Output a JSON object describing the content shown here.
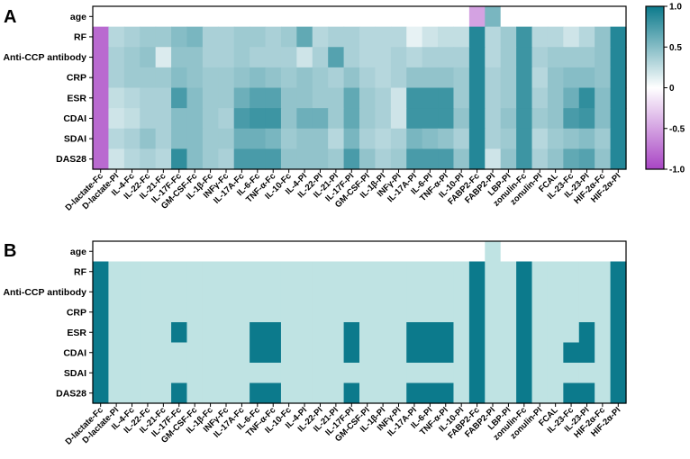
{
  "chart_data": [
    {
      "type": "heatmap",
      "panel": "A",
      "rows": [
        "age",
        "RF",
        "Anti-CCP antibody",
        "CRP",
        "ESR",
        "CDAI",
        "SDAI",
        "DAS28"
      ],
      "columns": [
        "D-lactate-Fc",
        "D-lactate-PI",
        "IL-4-Fc",
        "IL-22-Fc",
        "IL-21-Fc",
        "IL-17F-Fc",
        "GM-CSF-Fc",
        "IL-1β-Fc",
        "INFγ-Fc",
        "IL-17A-Fc",
        "IL-6-Fc",
        "TNF-α-Fc",
        "IL-10-Fc",
        "IL-4-PI",
        "IL-22-PI",
        "IL-21-PI",
        "IL-17F-PI",
        "GM-CSF-PI",
        "IL-1β-PI",
        "INFγ-PI",
        "IL-17A-PI",
        "IL-6-PI",
        "TNF-α-PI",
        "IL-10-PI",
        "FABP2-Fc",
        "FABP2-PI",
        "LBP-PI",
        "zonulin-Fc",
        "zonulin-PI",
        "FCAL",
        "IL-23-Fc",
        "IL-23-PI",
        "HIF-2α-Fc",
        "HIF-2α-PI"
      ],
      "values": [
        [
          0,
          0,
          0,
          0,
          0,
          0,
          0,
          0,
          0,
          0,
          0,
          0,
          0,
          0,
          0,
          0,
          0,
          0,
          0,
          0,
          0,
          0,
          0,
          0,
          -0.5,
          0.55,
          0,
          0,
          0,
          0,
          0,
          0,
          0,
          0
        ],
        [
          -0.8,
          0.3,
          0.35,
          0.4,
          0.4,
          0.5,
          0.55,
          0.35,
          0.35,
          0.4,
          0.4,
          0.35,
          0.4,
          0.65,
          0.3,
          0.35,
          0.35,
          0.3,
          0.3,
          0.3,
          0.1,
          0.2,
          0.25,
          0.25,
          0.9,
          0.3,
          0.4,
          0.8,
          0.3,
          0.3,
          0.2,
          0.3,
          0.45,
          0.9
        ],
        [
          -0.8,
          0.35,
          0.4,
          0.45,
          0.15,
          0.45,
          0.45,
          0.35,
          0.35,
          0.4,
          0.35,
          0.35,
          0.35,
          0.2,
          0.35,
          0.7,
          0.35,
          0.3,
          0.3,
          0.35,
          0.3,
          0.35,
          0.35,
          0.35,
          0.9,
          0.3,
          0.4,
          0.8,
          0.35,
          0.4,
          0.4,
          0.4,
          0.45,
          0.9
        ],
        [
          -0.8,
          0.35,
          0.4,
          0.4,
          0.4,
          0.5,
          0.45,
          0.4,
          0.4,
          0.45,
          0.5,
          0.45,
          0.4,
          0.45,
          0.4,
          0.35,
          0.45,
          0.35,
          0.3,
          0.35,
          0.45,
          0.45,
          0.45,
          0.4,
          0.9,
          0.35,
          0.4,
          0.8,
          0.3,
          0.45,
          0.5,
          0.5,
          0.45,
          0.9
        ],
        [
          -0.8,
          0.25,
          0.3,
          0.35,
          0.35,
          0.75,
          0.5,
          0.4,
          0.4,
          0.6,
          0.7,
          0.7,
          0.45,
          0.45,
          0.4,
          0.4,
          0.65,
          0.4,
          0.35,
          0.2,
          0.8,
          0.8,
          0.8,
          0.4,
          0.9,
          0.35,
          0.4,
          0.8,
          0.35,
          0.45,
          0.6,
          0.85,
          0.5,
          0.9
        ],
        [
          -0.8,
          0.2,
          0.25,
          0.35,
          0.35,
          0.5,
          0.5,
          0.4,
          0.35,
          0.75,
          0.8,
          0.8,
          0.45,
          0.6,
          0.6,
          0.4,
          0.65,
          0.4,
          0.35,
          0.2,
          0.8,
          0.8,
          0.8,
          0.45,
          0.9,
          0.35,
          0.45,
          0.8,
          0.4,
          0.45,
          0.75,
          0.8,
          0.5,
          0.9
        ],
        [
          -0.8,
          0.3,
          0.35,
          0.45,
          0.35,
          0.5,
          0.5,
          0.4,
          0.4,
          0.6,
          0.6,
          0.55,
          0.4,
          0.45,
          0.45,
          0.3,
          0.55,
          0.35,
          0.3,
          0.35,
          0.55,
          0.5,
          0.45,
          0.35,
          0.9,
          0.35,
          0.4,
          0.8,
          0.3,
          0.4,
          0.45,
          0.5,
          0.4,
          0.9
        ],
        [
          -0.8,
          0.2,
          0.3,
          0.35,
          0.3,
          0.85,
          0.5,
          0.4,
          0.35,
          0.75,
          0.75,
          0.75,
          0.45,
          0.45,
          0.45,
          0.4,
          0.75,
          0.45,
          0.35,
          0.4,
          0.75,
          0.75,
          0.75,
          0.45,
          0.9,
          0.2,
          0.45,
          0.8,
          0.35,
          0.45,
          0.65,
          0.7,
          0.45,
          0.9
        ]
      ],
      "colorbar": {
        "ticks": [
          "1.0",
          "0.5",
          "0",
          "-0.5",
          "-1.0"
        ],
        "range": [
          -1,
          1
        ]
      },
      "colors": {
        "pos": "#0c7a8c",
        "neg": "#a845c4",
        "mid": "#ffffff"
      }
    },
    {
      "type": "heatmap",
      "panel": "B",
      "rows": [
        "age",
        "RF",
        "Anti-CCP antibody",
        "CRP",
        "ESR",
        "CDAI",
        "SDAI",
        "DAS28"
      ],
      "columns": [
        "D-lactate-Fc",
        "D-lactate-PI",
        "IL-4-Fc",
        "IL-22-Fc",
        "IL-21-Fc",
        "IL-17F-Fc",
        "GM-CSF-Fc",
        "IL-1β-Fc",
        "INFγ-Fc",
        "IL-17A-Fc",
        "IL-6-Fc",
        "TNF-α-Fc",
        "IL-10-Fc",
        "IL-4-PI",
        "IL-22-PI",
        "IL-21-PI",
        "IL-17F-PI",
        "GM-CSF-PI",
        "IL-1β-PI",
        "INFγ-PI",
        "IL-17A-PI",
        "IL-6-PI",
        "TNF-α-PI",
        "IL-10-PI",
        "FABP2-Fc",
        "FABP2-PI",
        "LBP-PI",
        "zonulin-Fc",
        "zonulin-PI",
        "FCAL",
        "IL-23-Fc",
        "IL-23-PI",
        "HIF-2α-Fc",
        "HIF-2α-PI"
      ],
      "values": [
        [
          0,
          0,
          0,
          0,
          0,
          0,
          0,
          0,
          0,
          0,
          0,
          0,
          0,
          0,
          0,
          0,
          0,
          0,
          0,
          0,
          0,
          0,
          0,
          0,
          0,
          1,
          0,
          0,
          0,
          0,
          0,
          0,
          0,
          0
        ],
        [
          2,
          1,
          1,
          1,
          1,
          1,
          1,
          1,
          1,
          1,
          1,
          1,
          1,
          1,
          1,
          1,
          1,
          1,
          1,
          1,
          1,
          1,
          1,
          1,
          2,
          1,
          1,
          2,
          1,
          1,
          1,
          1,
          1,
          2
        ],
        [
          2,
          1,
          1,
          1,
          1,
          1,
          1,
          1,
          1,
          1,
          1,
          1,
          1,
          1,
          1,
          1,
          1,
          1,
          1,
          1,
          1,
          1,
          1,
          1,
          2,
          1,
          1,
          2,
          1,
          1,
          1,
          1,
          1,
          2
        ],
        [
          2,
          1,
          1,
          1,
          1,
          1,
          1,
          1,
          1,
          1,
          1,
          1,
          1,
          1,
          1,
          1,
          1,
          1,
          1,
          1,
          1,
          1,
          1,
          1,
          2,
          1,
          1,
          2,
          1,
          1,
          1,
          1,
          1,
          2
        ],
        [
          2,
          1,
          1,
          1,
          1,
          2,
          1,
          1,
          1,
          1,
          2,
          2,
          1,
          1,
          1,
          1,
          2,
          1,
          1,
          1,
          2,
          2,
          2,
          1,
          2,
          1,
          1,
          2,
          1,
          1,
          1,
          2,
          1,
          2
        ],
        [
          2,
          1,
          1,
          1,
          1,
          1,
          1,
          1,
          1,
          1,
          2,
          2,
          1,
          1,
          1,
          1,
          2,
          1,
          1,
          1,
          2,
          2,
          2,
          1,
          2,
          1,
          1,
          2,
          1,
          1,
          2,
          2,
          1,
          2
        ],
        [
          2,
          1,
          1,
          1,
          1,
          1,
          1,
          1,
          1,
          1,
          1,
          1,
          1,
          1,
          1,
          1,
          1,
          1,
          1,
          1,
          1,
          1,
          1,
          1,
          2,
          1,
          1,
          2,
          1,
          1,
          1,
          1,
          1,
          2
        ],
        [
          2,
          1,
          1,
          1,
          1,
          2,
          1,
          1,
          1,
          1,
          2,
          2,
          1,
          1,
          1,
          1,
          2,
          1,
          1,
          1,
          2,
          2,
          2,
          1,
          2,
          1,
          1,
          2,
          1,
          1,
          2,
          2,
          1,
          2
        ]
      ],
      "colors": {
        "0": "#ffffff",
        "1": "#bfe3e3",
        "2": "#0c7a8c"
      }
    }
  ]
}
